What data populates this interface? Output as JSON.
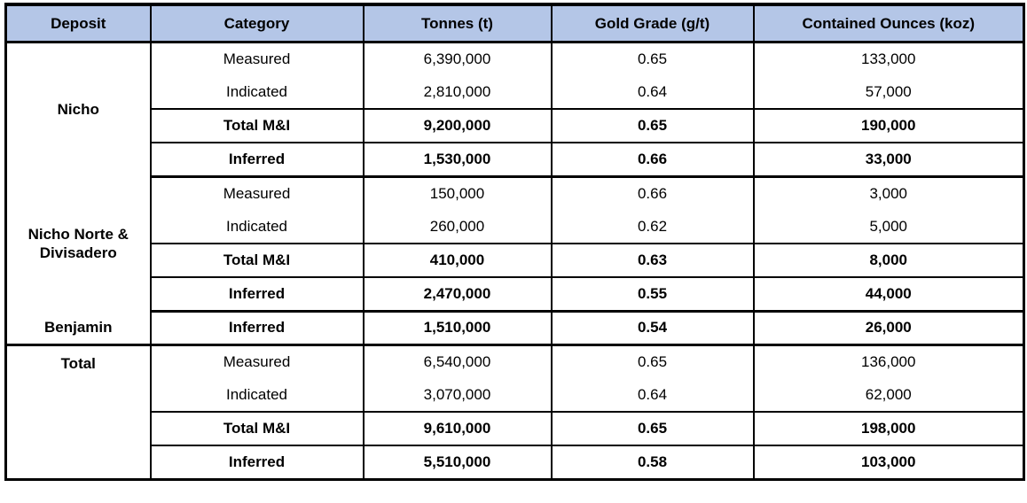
{
  "columns": [
    "Deposit",
    "Category",
    "Tonnes (t)",
    "Gold Grade (g/t)",
    "Contained Ounces (koz)"
  ],
  "deposits": {
    "nicho": "Nicho",
    "nicho_norte": "Nicho Norte & Divisadero",
    "benjamin": "Benjamin",
    "total": "Total"
  },
  "rows": [
    {
      "category": "Measured",
      "tonnes": "6,390,000",
      "grade": "0.65",
      "ounces": "133,000"
    },
    {
      "category": "Indicated",
      "tonnes": "2,810,000",
      "grade": "0.64",
      "ounces": "57,000"
    },
    {
      "category": "Total M&I",
      "tonnes": "9,200,000",
      "grade": "0.65",
      "ounces": "190,000"
    },
    {
      "category": "Inferred",
      "tonnes": "1,530,000",
      "grade": "0.66",
      "ounces": "33,000"
    },
    {
      "category": "Measured",
      "tonnes": "150,000",
      "grade": "0.66",
      "ounces": "3,000"
    },
    {
      "category": "Indicated",
      "tonnes": "260,000",
      "grade": "0.62",
      "ounces": "5,000"
    },
    {
      "category": "Total M&I",
      "tonnes": "410,000",
      "grade": "0.63",
      "ounces": "8,000"
    },
    {
      "category": "Inferred",
      "tonnes": "2,470,000",
      "grade": "0.55",
      "ounces": "44,000"
    },
    {
      "category": "Inferred",
      "tonnes": "1,510,000",
      "grade": "0.54",
      "ounces": "26,000"
    },
    {
      "category": "Measured",
      "tonnes": "6,540,000",
      "grade": "0.65",
      "ounces": "136,000"
    },
    {
      "category": "Indicated",
      "tonnes": "3,070,000",
      "grade": "0.64",
      "ounces": "62,000"
    },
    {
      "category": "Total M&I",
      "tonnes": "9,610,000",
      "grade": "0.65",
      "ounces": "198,000"
    },
    {
      "category": "Inferred",
      "tonnes": "5,510,000",
      "grade": "0.58",
      "ounces": "103,000"
    }
  ],
  "colors": {
    "header_bg": "#B4C6E7",
    "border": "#000000"
  }
}
